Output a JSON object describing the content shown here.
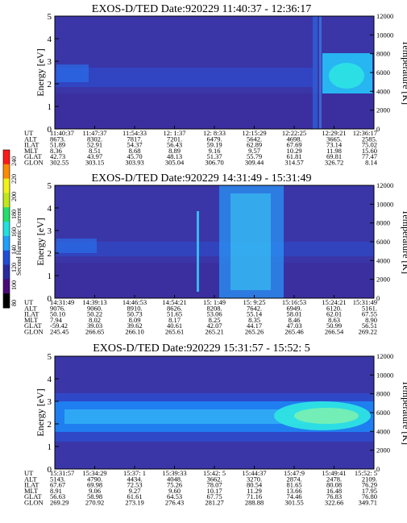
{
  "chart_data": {
    "type": "heatmap",
    "colorbar": {
      "label": "Second Harmonic Current",
      "ticks": [
        "80",
        "100",
        "120",
        "140",
        "160",
        "180",
        "200",
        "220",
        "240"
      ],
      "colors": [
        "#000000",
        "#4b0a78",
        "#2a2aa0",
        "#1f4ed8",
        "#1fa0ff",
        "#22e0e0",
        "#22e06a",
        "#bfe81a",
        "#f2f21a",
        "#ff8a00",
        "#ff1a1a"
      ]
    },
    "panels": [
      {
        "title": "EXOS-D/TED   Date:920229  11:40:37 - 12:36:17",
        "ylabel": "Energy [eV]",
        "y2label": "Temperature [K]",
        "ylim": [
          0,
          5
        ],
        "y2lim": [
          0,
          12000
        ],
        "yticks": [
          "0",
          "1",
          "2",
          "3",
          "4",
          "5"
        ],
        "y2ticks": [
          "0",
          "2000",
          "4000",
          "6000",
          "8000",
          "10000",
          "12000"
        ],
        "rows": [
          {
            "label": "UT",
            "values": [
              "11:40:37",
              "11:47:37",
              "11:54:33",
              "12: 1:37",
              "12: 8:33",
              "12:15:29",
              "12:22:25",
              "12:29:21",
              "12:36:17"
            ]
          },
          {
            "label": "ALT",
            "values": [
              "8673.",
              "8302.",
              "7817.",
              "7201.",
              "6479.",
              "5642.",
              "4698.",
              "3665.",
              "2585."
            ]
          },
          {
            "label": "ILAT",
            "values": [
              "51.89",
              "52.91",
              "54.37",
              "56.43",
              "59.19",
              "62.89",
              "67.69",
              "73.14",
              "75.02"
            ]
          },
          {
            "label": "MLT",
            "values": [
              "8.36",
              "8.51",
              "8.68",
              "8.89",
              "9.16",
              "9.57",
              "10.29",
              "11.98",
              "15.60"
            ]
          },
          {
            "label": "GLAT",
            "values": [
              "42.73",
              "43.97",
              "45.70",
              "48.13",
              "51.37",
              "55.79",
              "61.81",
              "69.81",
              "77.47"
            ]
          },
          {
            "label": "GLON",
            "values": [
              "302.55",
              "303.15",
              "303.93",
              "305.04",
              "306.70",
              "309.44",
              "314.57",
              "326.72",
              "8.14"
            ]
          }
        ]
      },
      {
        "title": "EXOS-D/TED   Date:920229  14:31:49 - 15:31:49",
        "ylabel": "Energy [eV]",
        "y2label": "Temperature [K]",
        "ylim": [
          0,
          5
        ],
        "y2lim": [
          0,
          12000
        ],
        "yticks": [
          "0",
          "1",
          "2",
          "3",
          "4",
          "5"
        ],
        "y2ticks": [
          "0",
          "2000",
          "4000",
          "6000",
          "8000",
          "10000",
          "12000"
        ],
        "rows": [
          {
            "label": "UT",
            "values": [
              "14:31:49",
              "14:39:13",
              "14:46:53",
              "14:54:21",
              "15: 1:49",
              "15: 9:25",
              "15:16:53",
              "15:24:21",
              "15:31:49"
            ]
          },
          {
            "label": "ALT",
            "values": [
              "9076.",
              "9060.",
              "8910.",
              "8626.",
              "8208.",
              "7642.",
              "6949.",
              "6120.",
              "5161."
            ]
          },
          {
            "label": "ILAT",
            "values": [
              "50.10",
              "50.22",
              "50.73",
              "51.65",
              "53.06",
              "55.14",
              "58.01",
              "62.01",
              "67.55"
            ]
          },
          {
            "label": "MLT",
            "values": [
              "7.94",
              "8.02",
              "8.09",
              "8.17",
              "8.25",
              "8.35",
              "8.46",
              "8.63",
              "8.90"
            ]
          },
          {
            "label": "GLAT",
            "values": [
              "-59.42",
              "39.03",
              "39.62",
              "40.61",
              "42.07",
              "44.17",
              "47.03",
              "50.99",
              "56.51"
            ]
          },
          {
            "label": "GLON",
            "values": [
              "245.45",
              "266.65",
              "266.10",
              "265.61",
              "265.21",
              "265.26",
              "265.46",
              "266.54",
              "269.22"
            ]
          }
        ]
      },
      {
        "title": "EXOS-D/TED   Date:920229  15:31:57 - 15:52: 5",
        "ylabel": "Energy [eV]",
        "y2label": "Temperature [K]",
        "ylim": [
          0,
          5
        ],
        "y2lim": [
          0,
          12000
        ],
        "yticks": [
          "0",
          "1",
          "2",
          "3",
          "4",
          "5"
        ],
        "y2ticks": [
          "0",
          "2000",
          "4000",
          "6000",
          "8000",
          "10000",
          "12000"
        ],
        "rows": [
          {
            "label": "UT",
            "values": [
              "15:31:57",
              "15:34:29",
              "15:37: 1",
              "15:39:33",
              "15:42: 5",
              "15:44:37",
              "15:47:9",
              "15:49:41",
              "15:52: 5"
            ]
          },
          {
            "label": "ALT",
            "values": [
              "5143.",
              "4790.",
              "4434.",
              "4048.",
              "3662.",
              "3270.",
              "2874.",
              "2478.",
              "2109."
            ]
          },
          {
            "label": "ILAT",
            "values": [
              "67.67",
              "69.98",
              "72.53",
              "75.26",
              "78.07",
              "80.54",
              "81.65",
              "80.08",
              "76.29"
            ]
          },
          {
            "label": "MLT",
            "values": [
              "8.91",
              "9.06",
              "9.27",
              "9.60",
              "10.17",
              "11.29",
              "13.66",
              "16.48",
              "17.95"
            ]
          },
          {
            "label": "GLAT",
            "values": [
              "56.63",
              "58.98",
              "61.61",
              "64.53",
              "67.75",
              "71.16",
              "74.46",
              "76.83",
              "76.80"
            ]
          },
          {
            "label": "GLON",
            "values": [
              "269.29",
              "270.92",
              "273.19",
              "276.43",
              "281.27",
              "288.88",
              "301.55",
              "322.66",
              "349.71"
            ]
          }
        ]
      }
    ]
  }
}
